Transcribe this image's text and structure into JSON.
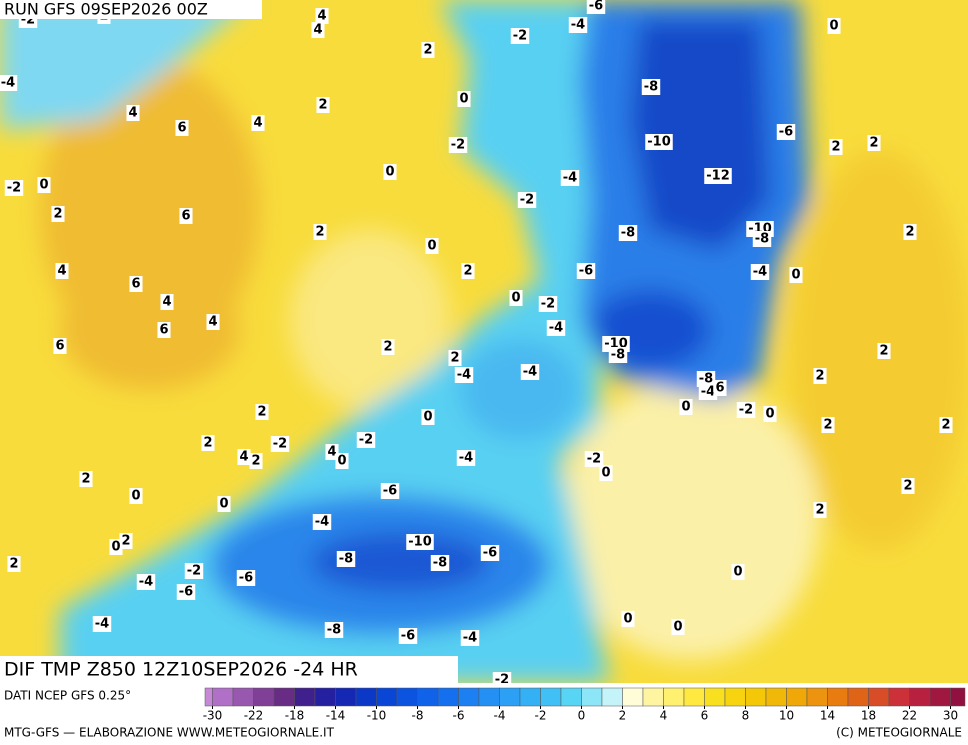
{
  "header": {
    "title": "RUN GFS 09SEP2026 00Z"
  },
  "footer": {
    "title": "DIF TMP Z850 12Z10SEP2026 -24 HR",
    "source": "DATI NCEP GFS 0.25°",
    "credit_left": "MTG-GFS — ELABORAZIONE WWW.METEOGIORNALE.IT",
    "credit_right": "(C) METEOGIORNALE"
  },
  "map": {
    "labels": [
      -2,
      2,
      4,
      4,
      -6,
      -4,
      -2,
      0,
      -4,
      2,
      4,
      6,
      4,
      2,
      0,
      -8,
      -2,
      -10,
      -6,
      2,
      2,
      -2,
      0,
      0,
      -4,
      -12,
      2,
      6,
      -2,
      2,
      0,
      -8,
      -10,
      -8,
      2,
      4,
      6,
      2,
      -6,
      -4,
      0,
      4,
      0,
      -2,
      4,
      -4,
      6,
      6,
      2,
      -10,
      -8,
      2,
      2,
      -4,
      -4,
      -8,
      -4,
      6,
      2,
      0,
      -2,
      0,
      2,
      0,
      2,
      -2,
      -2,
      4,
      2,
      4,
      0,
      -4,
      -2,
      0,
      2,
      2,
      2,
      0,
      0,
      -6,
      2,
      2,
      -4,
      2,
      0,
      -10,
      -8,
      -8,
      -6,
      2,
      -2,
      0,
      -4,
      -6,
      -6,
      -4,
      -8,
      -6,
      -4,
      0,
      0,
      -2
    ]
  },
  "colorbar": {
    "levels": [
      -30,
      -26,
      -22,
      -20,
      -18,
      -16,
      -14,
      -12,
      -10,
      -9,
      -8,
      -7,
      -6,
      -5,
      -4,
      -3,
      -2,
      -1,
      0,
      1,
      2,
      3,
      4,
      5,
      6,
      7,
      8,
      9,
      10,
      12,
      14,
      16,
      18,
      20,
      22,
      26,
      30
    ],
    "colors": [
      "#c888d8",
      "#b070c8",
      "#9858b0",
      "#804098",
      "#682c84",
      "#40208c",
      "#2420a0",
      "#1428b4",
      "#0c38c8",
      "#0a46d6",
      "#0c54e0",
      "#1062e8",
      "#1470ee",
      "#1c80f2",
      "#2490f4",
      "#2ca0f4",
      "#34b0f4",
      "#40c0f4",
      "#58d4f4",
      "#8ce6f8",
      "#c4f4fa",
      "#fffcd8",
      "#fff4a0",
      "#fff070",
      "#ffe840",
      "#f8e020",
      "#f8d410",
      "#f4c808",
      "#f0b808",
      "#f0a808",
      "#ec9410",
      "#e87c10",
      "#e06418",
      "#d84c28",
      "#cc3038",
      "#b82040",
      "#a01840",
      "#901040"
    ],
    "ticks": [
      -30,
      -22,
      -18,
      -14,
      -10,
      -8,
      -6,
      -4,
      -2,
      0,
      2,
      4,
      6,
      8,
      10,
      14,
      18,
      22,
      30
    ]
  }
}
